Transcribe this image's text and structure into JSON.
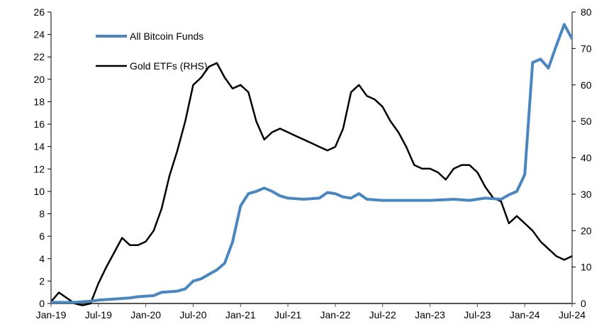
{
  "chart_data": {
    "type": "line",
    "title": "",
    "xlabel": "",
    "ylabel": "",
    "y2label": "",
    "grid": false,
    "legend_placement": "top-left",
    "x_ticks": [
      "Jan-19",
      "Jul-19",
      "Jan-20",
      "Jul-20",
      "Jan-21",
      "Jul-21",
      "Jan-22",
      "Jul-22",
      "Jan-23",
      "Jul-23",
      "Jan-24",
      "Jul-24"
    ],
    "xlim": [
      "2019-01",
      "2024-07"
    ],
    "ylim": [
      0,
      26
    ],
    "y_ticks": [
      0,
      2,
      4,
      6,
      8,
      10,
      12,
      14,
      16,
      18,
      20,
      22,
      24,
      26
    ],
    "y2lim": [
      0,
      80
    ],
    "y2_ticks": [
      0,
      10,
      20,
      30,
      40,
      50,
      60,
      70,
      80
    ],
    "series": [
      {
        "name": "All Bitcoin Funds",
        "axis": "left",
        "color": "#4a86c0",
        "x": [
          "2019-01",
          "2019-04",
          "2019-06",
          "2019-07",
          "2019-09",
          "2019-11",
          "2019-12",
          "2020-02",
          "2020-03",
          "2020-05",
          "2020-06",
          "2020-07",
          "2020-08",
          "2020-09",
          "2020-10",
          "2020-11",
          "2020-12",
          "2021-01",
          "2021-02",
          "2021-03",
          "2021-04",
          "2021-05",
          "2021-06",
          "2021-07",
          "2021-09",
          "2021-11",
          "2021-12",
          "2022-01",
          "2022-02",
          "2022-03",
          "2022-04",
          "2022-05",
          "2022-07",
          "2022-10",
          "2023-01",
          "2023-04",
          "2023-06",
          "2023-08",
          "2023-10",
          "2023-11",
          "2023-12",
          "2024-01",
          "2024-02",
          "2024-03",
          "2024-04",
          "2024-05",
          "2024-06",
          "2024-07"
        ],
        "values": [
          0.1,
          0.1,
          0.2,
          0.3,
          0.4,
          0.5,
          0.6,
          0.7,
          1.0,
          1.1,
          1.3,
          2.0,
          2.2,
          2.6,
          3.0,
          3.6,
          5.5,
          8.7,
          9.8,
          10.0,
          10.3,
          10.0,
          9.6,
          9.4,
          9.3,
          9.4,
          9.9,
          9.8,
          9.5,
          9.4,
          9.8,
          9.3,
          9.2,
          9.2,
          9.2,
          9.3,
          9.2,
          9.4,
          9.3,
          9.7,
          10.0,
          11.5,
          21.5,
          21.8,
          21.0,
          23.0,
          24.9,
          23.6
        ]
      },
      {
        "name": "Gold ETFs (RHS)",
        "axis": "right",
        "color": "#000000",
        "x": [
          "2019-01",
          "2019-02",
          "2019-03",
          "2019-04",
          "2019-05",
          "2019-06",
          "2019-07",
          "2019-08",
          "2019-09",
          "2019-10",
          "2019-11",
          "2019-12",
          "2020-01",
          "2020-02",
          "2020-03",
          "2020-04",
          "2020-05",
          "2020-06",
          "2020-07",
          "2020-08",
          "2020-09",
          "2020-10",
          "2020-11",
          "2020-12",
          "2021-01",
          "2021-02",
          "2021-03",
          "2021-04",
          "2021-05",
          "2021-06",
          "2021-07",
          "2021-08",
          "2021-09",
          "2021-10",
          "2021-11",
          "2021-12",
          "2022-01",
          "2022-02",
          "2022-03",
          "2022-04",
          "2022-05",
          "2022-06",
          "2022-07",
          "2022-08",
          "2022-09",
          "2022-10",
          "2022-11",
          "2022-12",
          "2023-01",
          "2023-02",
          "2023-03",
          "2023-04",
          "2023-05",
          "2023-06",
          "2023-07",
          "2023-08",
          "2023-09",
          "2023-10",
          "2023-11",
          "2023-12",
          "2024-01",
          "2024-02",
          "2024-03",
          "2024-04",
          "2024-05",
          "2024-06",
          "2024-07"
        ],
        "values": [
          0.5,
          3,
          1.5,
          0,
          -0.5,
          0,
          5.5,
          10,
          14,
          18,
          16,
          16,
          17,
          20,
          26,
          35,
          42,
          50,
          60,
          62,
          65,
          66,
          62,
          59,
          60,
          58,
          50,
          45,
          47,
          48,
          47,
          46,
          45,
          44,
          43,
          42,
          43,
          48,
          58,
          60,
          57,
          56,
          54,
          50,
          47,
          43,
          38,
          37,
          37,
          36,
          34,
          37,
          38,
          38,
          36,
          32,
          29,
          28,
          22,
          24,
          22,
          20,
          17,
          15,
          13,
          12,
          13
        ]
      }
    ]
  }
}
